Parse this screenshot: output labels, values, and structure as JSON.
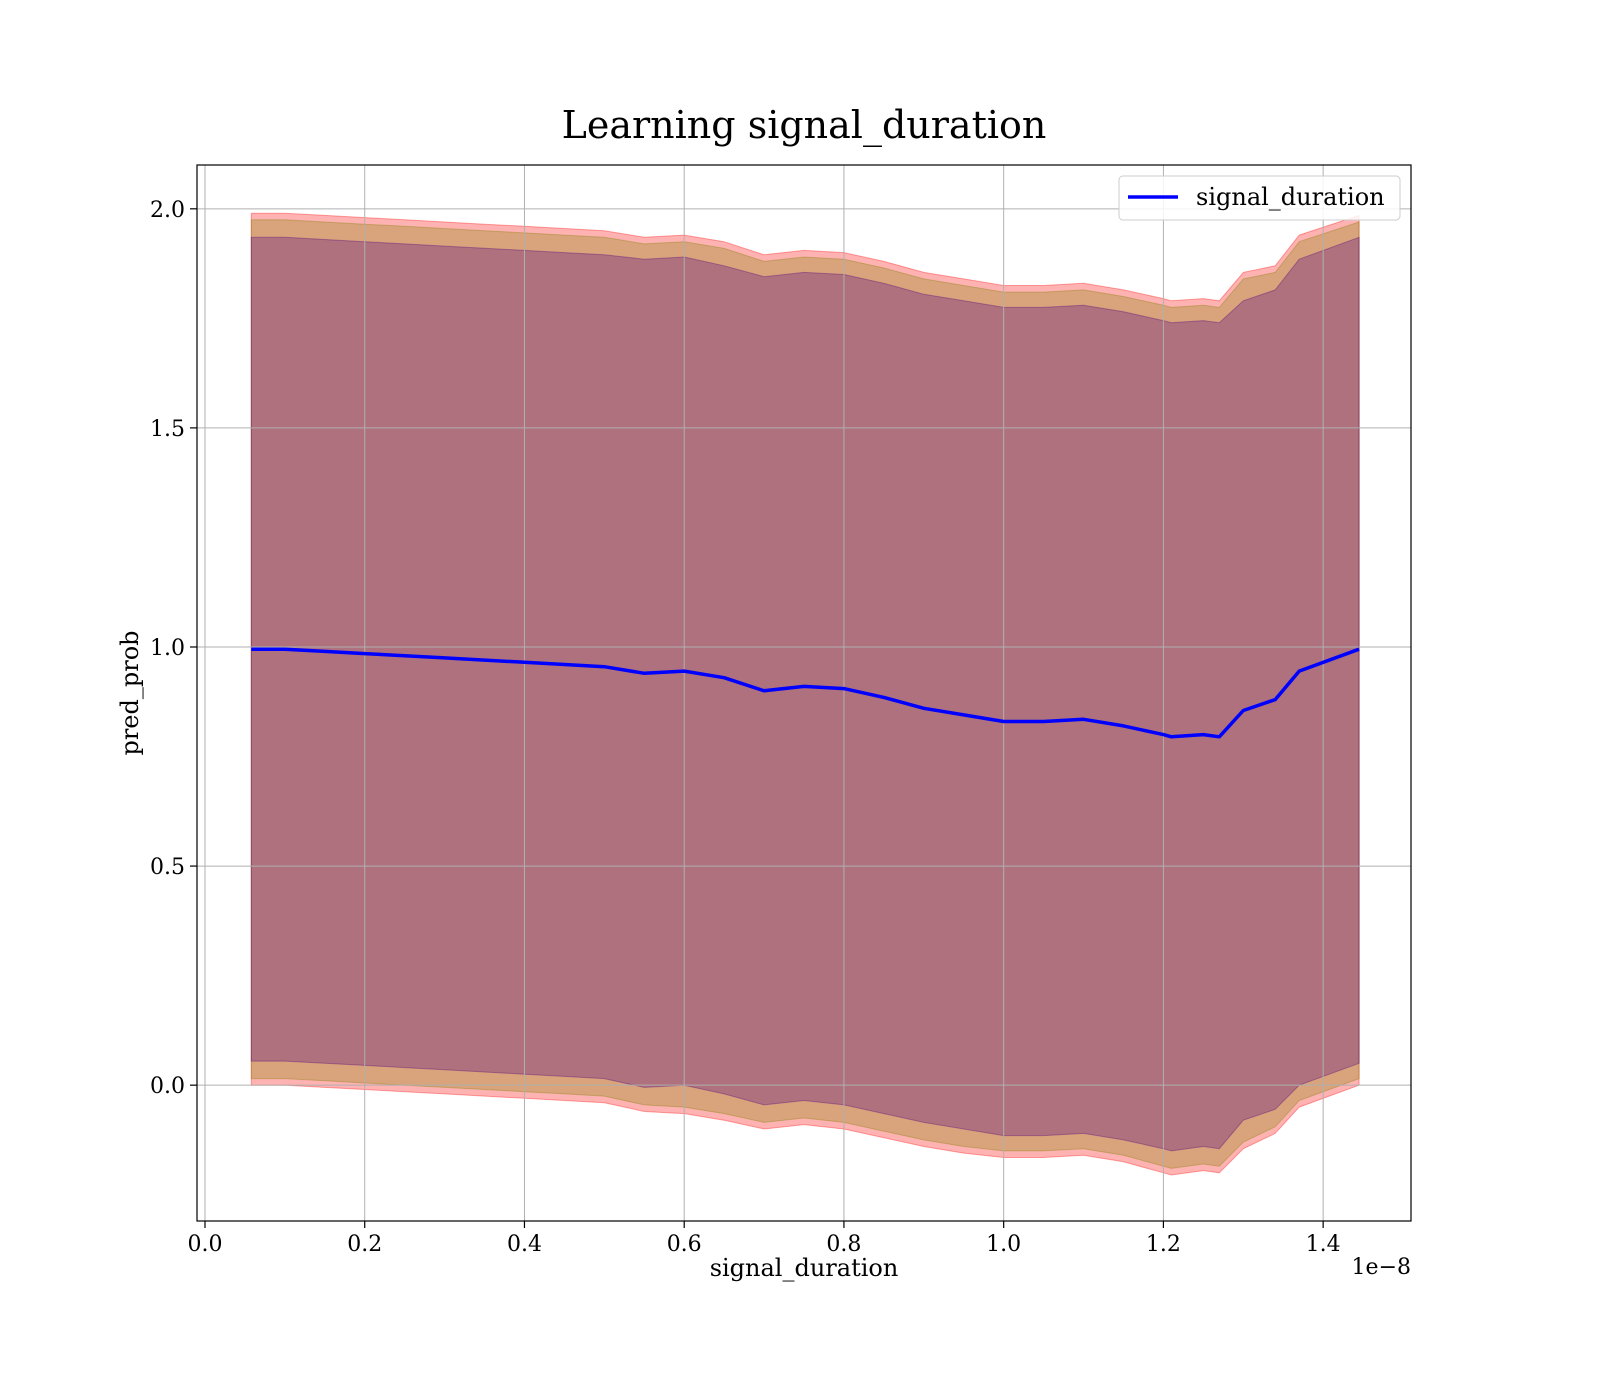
{
  "chart_data": {
    "type": "line",
    "title": "Learning signal_duration",
    "xlabel": "signal_duration",
    "ylabel": "pred_prob",
    "x_offset_label": "1e−8",
    "xlim": [
      -0.01,
      1.51
    ],
    "ylim": [
      -0.31,
      2.1
    ],
    "x_ticks": [
      0.0,
      0.2,
      0.4,
      0.6,
      0.8,
      1.0,
      1.2,
      1.4
    ],
    "x_tick_labels": [
      "0.0",
      "0.2",
      "0.4",
      "0.6",
      "0.8",
      "1.0",
      "1.2",
      "1.4"
    ],
    "y_ticks": [
      0.0,
      0.5,
      1.0,
      1.5,
      2.0
    ],
    "y_tick_labels": [
      "0.0",
      "0.5",
      "1.0",
      "1.5",
      "2.0"
    ],
    "grid": true,
    "legend_position": "top-right",
    "x": [
      0.058,
      0.1,
      0.15,
      0.2,
      0.25,
      0.3,
      0.35,
      0.4,
      0.45,
      0.5,
      0.55,
      0.6,
      0.65,
      0.7,
      0.75,
      0.8,
      0.85,
      0.9,
      0.95,
      1.0,
      1.05,
      1.1,
      1.15,
      1.2,
      1.21,
      1.25,
      1.27,
      1.3,
      1.34,
      1.37,
      1.445
    ],
    "series": [
      {
        "name": "signal_duration",
        "color": "#0000ff",
        "values": [
          0.995,
          0.995,
          0.99,
          0.985,
          0.98,
          0.975,
          0.97,
          0.965,
          0.96,
          0.955,
          0.94,
          0.945,
          0.93,
          0.9,
          0.91,
          0.905,
          0.885,
          0.86,
          0.845,
          0.83,
          0.83,
          0.835,
          0.82,
          0.8,
          0.795,
          0.8,
          0.795,
          0.855,
          0.88,
          0.945,
          0.995
        ]
      }
    ],
    "bands": [
      {
        "color": "#ff0000",
        "lower": [
          0.0,
          0.0,
          -0.005,
          -0.01,
          -0.015,
          -0.02,
          -0.025,
          -0.03,
          -0.035,
          -0.04,
          -0.06,
          -0.065,
          -0.08,
          -0.1,
          -0.09,
          -0.1,
          -0.12,
          -0.14,
          -0.155,
          -0.165,
          -0.165,
          -0.16,
          -0.175,
          -0.2,
          -0.205,
          -0.195,
          -0.2,
          -0.145,
          -0.11,
          -0.05,
          0.0
        ],
        "upper": [
          1.99,
          1.99,
          1.985,
          1.98,
          1.975,
          1.97,
          1.965,
          1.96,
          1.955,
          1.95,
          1.935,
          1.94,
          1.925,
          1.895,
          1.905,
          1.9,
          1.88,
          1.855,
          1.84,
          1.825,
          1.825,
          1.83,
          1.815,
          1.795,
          1.79,
          1.795,
          1.79,
          1.855,
          1.87,
          1.94,
          1.985
        ]
      },
      {
        "color": "#808000",
        "lower": [
          0.015,
          0.015,
          0.01,
          0.005,
          0.0,
          -0.005,
          -0.01,
          -0.015,
          -0.02,
          -0.025,
          -0.045,
          -0.05,
          -0.065,
          -0.085,
          -0.075,
          -0.085,
          -0.105,
          -0.125,
          -0.14,
          -0.15,
          -0.15,
          -0.145,
          -0.16,
          -0.185,
          -0.19,
          -0.18,
          -0.185,
          -0.13,
          -0.095,
          -0.035,
          0.015
        ],
        "upper": [
          1.975,
          1.975,
          1.97,
          1.965,
          1.96,
          1.955,
          1.95,
          1.945,
          1.94,
          1.935,
          1.92,
          1.925,
          1.91,
          1.88,
          1.89,
          1.885,
          1.865,
          1.84,
          1.825,
          1.81,
          1.81,
          1.815,
          1.8,
          1.78,
          1.775,
          1.78,
          1.775,
          1.84,
          1.855,
          1.925,
          1.97
        ]
      },
      {
        "color": "#4b0082",
        "lower": [
          0.055,
          0.055,
          0.05,
          0.045,
          0.04,
          0.035,
          0.03,
          0.025,
          0.02,
          0.015,
          -0.005,
          0.0,
          -0.02,
          -0.045,
          -0.035,
          -0.045,
          -0.065,
          -0.085,
          -0.1,
          -0.115,
          -0.115,
          -0.11,
          -0.125,
          -0.145,
          -0.15,
          -0.14,
          -0.145,
          -0.08,
          -0.055,
          0.0,
          0.05
        ],
        "upper": [
          1.935,
          1.935,
          1.93,
          1.925,
          1.92,
          1.915,
          1.91,
          1.905,
          1.9,
          1.895,
          1.885,
          1.89,
          1.87,
          1.845,
          1.855,
          1.85,
          1.83,
          1.805,
          1.79,
          1.775,
          1.775,
          1.78,
          1.765,
          1.745,
          1.74,
          1.745,
          1.74,
          1.79,
          1.815,
          1.885,
          1.935
        ]
      }
    ]
  }
}
